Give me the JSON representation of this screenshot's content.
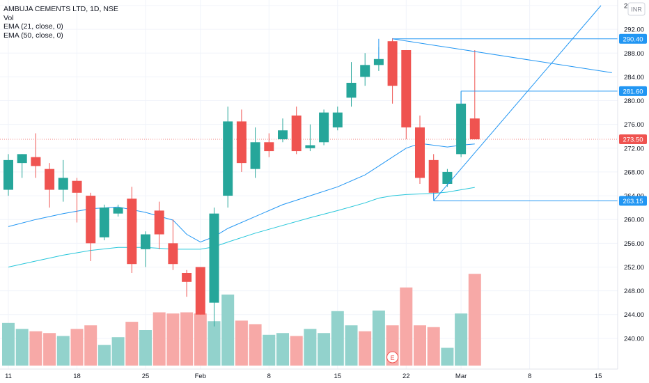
{
  "header": {
    "symbol_line": "AMBUJA CEMENTS LTD, 1D, NSE",
    "indicators": [
      "Vol",
      "EMA (21, close, 0)",
      "EMA (50, close, 0)"
    ]
  },
  "currency": "INR",
  "colors": {
    "up": "#26a69a",
    "down": "#ef5350",
    "up_vol": "#92d2cc",
    "down_vol": "#f7a9a7",
    "ema21": "#2196f3",
    "ema50": "#26c6da",
    "drawing": "#2196f3",
    "last_price_line": "#ef5350",
    "grid": "#f0f3fa"
  },
  "chart_data": {
    "type": "candlestick",
    "title": "AMBUJA CEMENTS LTD, 1D, NSE",
    "ylim": [
      236,
      296
    ],
    "y_ticks": [
      "240.00",
      "244.00",
      "248.00",
      "252.00",
      "256.00",
      "260.00",
      "264.00",
      "268.00",
      "272.00",
      "276.00",
      "280.00",
      "284.00",
      "288.00",
      "292.00",
      "296.00"
    ],
    "x_ticks": [
      {
        "label": "11",
        "index": 0
      },
      {
        "label": "18",
        "index": 5
      },
      {
        "label": "25",
        "index": 10
      },
      {
        "label": "Feb",
        "index": 14
      },
      {
        "label": "8",
        "index": 19
      },
      {
        "label": "15",
        "index": 24
      },
      {
        "label": "22",
        "index": 29
      },
      {
        "label": "Mar",
        "index": 33
      },
      {
        "label": "8",
        "index": 38
      },
      {
        "label": "15",
        "index": 43
      }
    ],
    "candles": [
      {
        "o": 265.0,
        "h": 271.0,
        "l": 264.0,
        "c": 270.0
      },
      {
        "o": 269.5,
        "h": 271.0,
        "l": 267.0,
        "c": 271.0
      },
      {
        "o": 270.5,
        "h": 274.5,
        "l": 267.0,
        "c": 269.0
      },
      {
        "o": 268.5,
        "h": 269.5,
        "l": 262.0,
        "c": 265.0
      },
      {
        "o": 265.0,
        "h": 270.0,
        "l": 263.0,
        "c": 267.0
      },
      {
        "o": 266.5,
        "h": 267.0,
        "l": 259.5,
        "c": 264.5
      },
      {
        "o": 264.0,
        "h": 264.5,
        "l": 253.0,
        "c": 256.0
      },
      {
        "o": 257.0,
        "h": 262.5,
        "l": 256.5,
        "c": 262.0
      },
      {
        "o": 261.0,
        "h": 262.5,
        "l": 260.5,
        "c": 262.0
      },
      {
        "o": 263.5,
        "h": 265.5,
        "l": 251.0,
        "c": 252.5
      },
      {
        "o": 255.0,
        "h": 258.0,
        "l": 252.0,
        "c": 257.5
      },
      {
        "o": 261.5,
        "h": 263.0,
        "l": 255.0,
        "c": 257.5
      },
      {
        "o": 256.0,
        "h": 260.0,
        "l": 251.5,
        "c": 252.5
      },
      {
        "o": 251.0,
        "h": 251.5,
        "l": 247.0,
        "c": 249.5
      },
      {
        "o": 252.0,
        "h": 252.0,
        "l": 244.0,
        "c": 244.0
      },
      {
        "o": 246.0,
        "h": 262.0,
        "l": 242.0,
        "c": 261.0
      },
      {
        "o": 264.0,
        "h": 279.0,
        "l": 262.0,
        "c": 276.5
      },
      {
        "o": 276.5,
        "h": 278.5,
        "l": 268.0,
        "c": 269.5
      },
      {
        "o": 268.5,
        "h": 275.5,
        "l": 267.0,
        "c": 273.0
      },
      {
        "o": 273.0,
        "h": 274.5,
        "l": 270.5,
        "c": 271.5
      },
      {
        "o": 273.5,
        "h": 277.0,
        "l": 273.0,
        "c": 275.0
      },
      {
        "o": 277.5,
        "h": 279.0,
        "l": 271.0,
        "c": 271.5
      },
      {
        "o": 272.0,
        "h": 276.0,
        "l": 271.5,
        "c": 272.5
      },
      {
        "o": 273.0,
        "h": 278.5,
        "l": 272.5,
        "c": 278.0
      },
      {
        "o": 275.5,
        "h": 279.0,
        "l": 275.0,
        "c": 278.0
      },
      {
        "o": 280.5,
        "h": 286.5,
        "l": 279.0,
        "c": 283.0
      },
      {
        "o": 284.0,
        "h": 288.0,
        "l": 282.5,
        "c": 286.0
      },
      {
        "o": 286.0,
        "h": 289.0,
        "l": 285.0,
        "c": 287.0
      },
      {
        "o": 290.0,
        "h": 290.5,
        "l": 279.5,
        "c": 282.5
      },
      {
        "o": 288.5,
        "h": 288.5,
        "l": 273.5,
        "c": 275.5
      },
      {
        "o": 275.5,
        "h": 277.5,
        "l": 266.0,
        "c": 267.0
      },
      {
        "o": 270.0,
        "h": 271.0,
        "l": 263.5,
        "c": 264.5
      },
      {
        "o": 266.0,
        "h": 268.5,
        "l": 265.5,
        "c": 268.0
      },
      {
        "o": 271.0,
        "h": 281.5,
        "l": 270.5,
        "c": 279.5
      },
      {
        "o": 277.0,
        "h": 288.5,
        "l": 273.5,
        "c": 273.5
      }
    ],
    "volume": [
      {
        "v": 0.72,
        "up": true
      },
      {
        "v": 0.62,
        "up": true
      },
      {
        "v": 0.58,
        "up": false
      },
      {
        "v": 0.55,
        "up": false
      },
      {
        "v": 0.5,
        "up": true
      },
      {
        "v": 0.62,
        "up": false
      },
      {
        "v": 0.68,
        "up": false
      },
      {
        "v": 0.35,
        "up": true
      },
      {
        "v": 0.48,
        "up": true
      },
      {
        "v": 0.74,
        "up": false
      },
      {
        "v": 0.6,
        "up": true
      },
      {
        "v": 0.9,
        "up": false
      },
      {
        "v": 0.88,
        "up": false
      },
      {
        "v": 0.9,
        "up": false
      },
      {
        "v": 0.88,
        "up": false
      },
      {
        "v": 0.75,
        "up": true
      },
      {
        "v": 1.2,
        "up": true
      },
      {
        "v": 0.76,
        "up": false
      },
      {
        "v": 0.7,
        "up": false
      },
      {
        "v": 0.52,
        "up": true
      },
      {
        "v": 0.55,
        "up": true
      },
      {
        "v": 0.5,
        "up": false
      },
      {
        "v": 0.62,
        "up": true
      },
      {
        "v": 0.55,
        "up": true
      },
      {
        "v": 0.92,
        "up": true
      },
      {
        "v": 0.68,
        "up": true
      },
      {
        "v": 0.58,
        "up": false
      },
      {
        "v": 0.93,
        "up": true
      },
      {
        "v": 0.68,
        "up": false
      },
      {
        "v": 1.32,
        "up": false
      },
      {
        "v": 0.68,
        "up": false
      },
      {
        "v": 0.65,
        "up": false
      },
      {
        "v": 0.3,
        "up": true
      },
      {
        "v": 0.88,
        "up": true
      },
      {
        "v": 1.55,
        "up": false
      }
    ],
    "ema21": [
      [
        0,
        258.8
      ],
      [
        2,
        260.0
      ],
      [
        4,
        261.0
      ],
      [
        6,
        261.8
      ],
      [
        8,
        262.1
      ],
      [
        10,
        261.2
      ],
      [
        12,
        259.9
      ],
      [
        13,
        257.5
      ],
      [
        14,
        256.2
      ],
      [
        15,
        257.1
      ],
      [
        16,
        258.5
      ],
      [
        18,
        260.5
      ],
      [
        20,
        262.5
      ],
      [
        22,
        264.0
      ],
      [
        24,
        265.5
      ],
      [
        26,
        267.5
      ],
      [
        27,
        269.0
      ],
      [
        28,
        270.5
      ],
      [
        29,
        272.0
      ],
      [
        30,
        272.8
      ],
      [
        31,
        272.5
      ],
      [
        32,
        272.2
      ],
      [
        33,
        272.5
      ],
      [
        34,
        272.7
      ]
    ],
    "ema50": [
      [
        0,
        252.0
      ],
      [
        2,
        253.0
      ],
      [
        4,
        254.0
      ],
      [
        6,
        254.8
      ],
      [
        8,
        255.3
      ],
      [
        10,
        255.3
      ],
      [
        12,
        255.0
      ],
      [
        14,
        255.0
      ],
      [
        15,
        255.4
      ],
      [
        16,
        256.2
      ],
      [
        18,
        257.7
      ],
      [
        20,
        259.0
      ],
      [
        22,
        260.3
      ],
      [
        24,
        261.5
      ],
      [
        26,
        262.8
      ],
      [
        27,
        263.6
      ],
      [
        28,
        264.0
      ],
      [
        29,
        264.2
      ],
      [
        30,
        264.3
      ],
      [
        31,
        264.4
      ],
      [
        32,
        264.6
      ],
      [
        33,
        265.0
      ],
      [
        34,
        265.4
      ]
    ],
    "price_labels": [
      {
        "text": "290.40",
        "value": 290.4,
        "kind": "drawing"
      },
      {
        "text": "281.60",
        "value": 281.6,
        "kind": "drawing"
      },
      {
        "text": "273.50",
        "value": 273.5,
        "kind": "last"
      },
      {
        "text": "263.15",
        "value": 263.15,
        "kind": "drawing"
      }
    ],
    "drawings": [
      {
        "type": "hline",
        "value": 290.4,
        "from": 28
      },
      {
        "type": "hline",
        "value": 281.6,
        "from": 33
      },
      {
        "type": "hline",
        "value": 263.15,
        "from": 31
      },
      {
        "type": "vline",
        "index": 27,
        "from": 287.0,
        "to": 290.4
      },
      {
        "type": "vline",
        "index": 33,
        "from": 279.5,
        "to": 281.6
      },
      {
        "type": "vline",
        "index": 31,
        "from": 263.15,
        "to": 264.5
      },
      {
        "type": "trend",
        "x1": 28,
        "y1": 290.4,
        "x2": 44,
        "y2": 284.7
      },
      {
        "type": "trend",
        "x1": 31,
        "y1": 263.15,
        "x2": 43.2,
        "y2": 296
      }
    ],
    "earnings_marker": {
      "text": "E",
      "index": 28
    }
  }
}
